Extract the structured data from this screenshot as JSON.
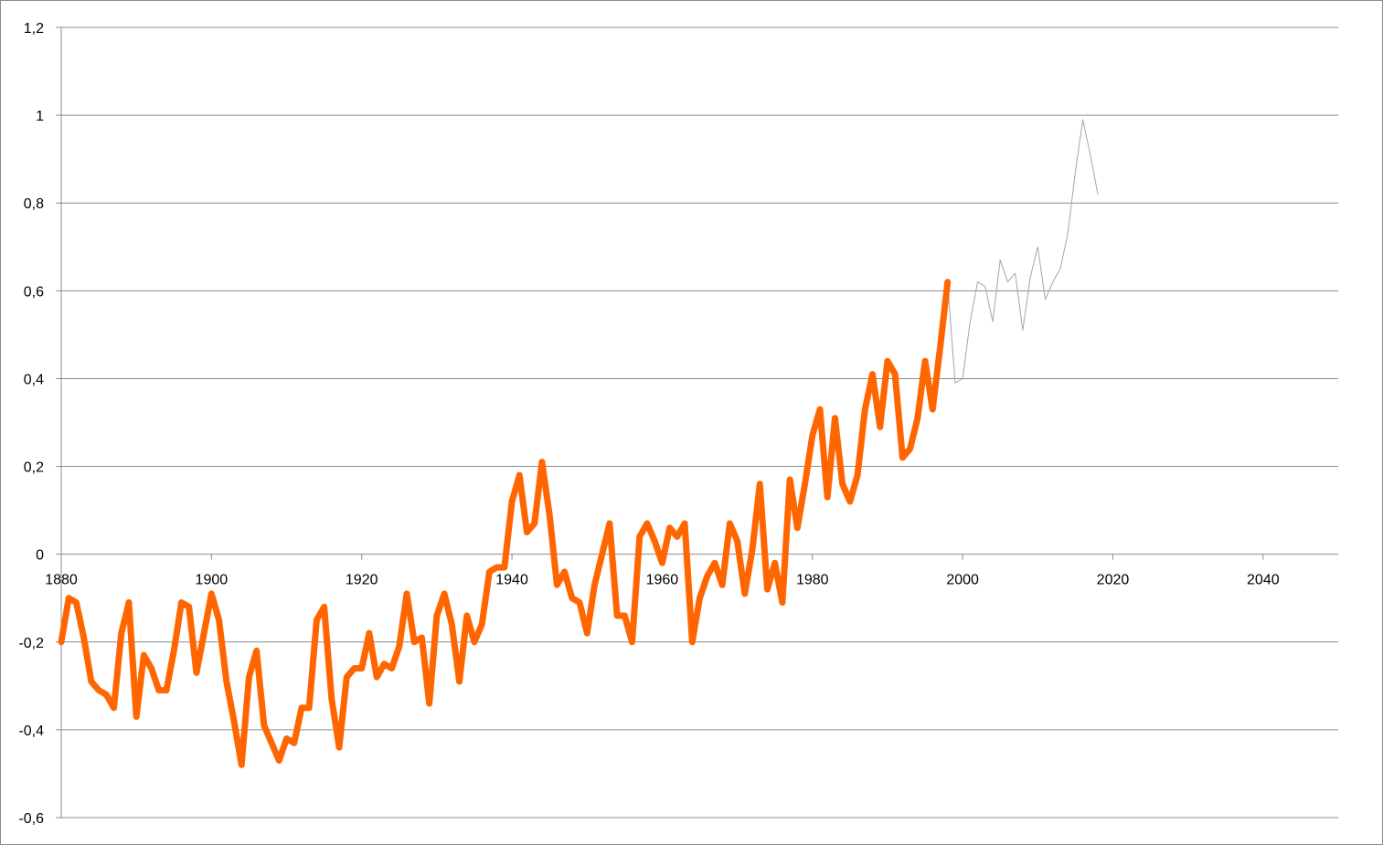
{
  "chart_data": {
    "type": "line",
    "title": "",
    "xlabel": "",
    "ylabel": "",
    "xlim": [
      1880,
      2050
    ],
    "ylim": [
      -0.6,
      1.2
    ],
    "x_ticks": [
      1880,
      1900,
      1920,
      1940,
      1960,
      1980,
      2000,
      2020,
      2040
    ],
    "x_tick_labels": [
      "1880",
      "1900",
      "1920",
      "1940",
      "1960",
      "1980",
      "2000",
      "2020",
      "2040"
    ],
    "y_ticks": [
      -0.6,
      -0.4,
      -0.2,
      0,
      0.2,
      0.4,
      0.6,
      0.8,
      1,
      1.2
    ],
    "y_tick_labels": [
      "-0,6",
      "-0,4",
      "-0,2",
      "0",
      "0,2",
      "0,4",
      "0,6",
      "0,8",
      "1",
      "1,2"
    ],
    "grid": "horizontal",
    "legend": "none",
    "series": [
      {
        "color": "#ff6600",
        "x_start": 1880,
        "values": [
          -0.2,
          -0.1,
          -0.11,
          -0.19,
          -0.29,
          -0.31,
          -0.32,
          -0.35,
          -0.18,
          -0.11,
          -0.37,
          -0.23,
          -0.26,
          -0.31,
          -0.31,
          -0.22,
          -0.11,
          -0.12,
          -0.27,
          -0.18,
          -0.09,
          -0.15,
          -0.29,
          -0.38,
          -0.48,
          -0.28,
          -0.22,
          -0.39,
          -0.43,
          -0.47,
          -0.42,
          -0.43,
          -0.35,
          -0.35,
          -0.15,
          -0.12,
          -0.33,
          -0.44,
          -0.28,
          -0.26,
          -0.26,
          -0.18,
          -0.28,
          -0.25,
          -0.26,
          -0.21,
          -0.09,
          -0.2,
          -0.19,
          -0.34,
          -0.14,
          -0.09,
          -0.16,
          -0.29,
          -0.14,
          -0.2,
          -0.16,
          -0.04,
          -0.03,
          -0.03,
          0.12,
          0.18,
          0.05,
          0.07,
          0.21,
          0.09,
          -0.07,
          -0.04,
          -0.1,
          -0.11,
          -0.18,
          -0.07,
          0.0,
          0.07,
          -0.14,
          -0.14,
          -0.2,
          0.04,
          0.07,
          0.03,
          -0.02,
          0.06,
          0.04,
          0.07,
          -0.2,
          -0.1,
          -0.05,
          -0.02,
          -0.07,
          0.07,
          0.03,
          -0.09,
          0.01,
          0.16,
          -0.08,
          -0.02,
          -0.11,
          0.17,
          0.06,
          0.16,
          0.27,
          0.33,
          0.13,
          0.31,
          0.16,
          0.12,
          0.18,
          0.33,
          0.41,
          0.29,
          0.44,
          0.41,
          0.22,
          0.24,
          0.31,
          0.44,
          0.33,
          0.47,
          0.62
        ]
      },
      {
        "color": "#a6a6a6",
        "x_start": 1998,
        "values": [
          0.62,
          0.39,
          0.4,
          0.53,
          0.62,
          0.61,
          0.53,
          0.67,
          0.62,
          0.64,
          0.51,
          0.63,
          0.7,
          0.58,
          0.62,
          0.65,
          0.73,
          0.87,
          0.99,
          0.91,
          0.82
        ]
      }
    ]
  }
}
